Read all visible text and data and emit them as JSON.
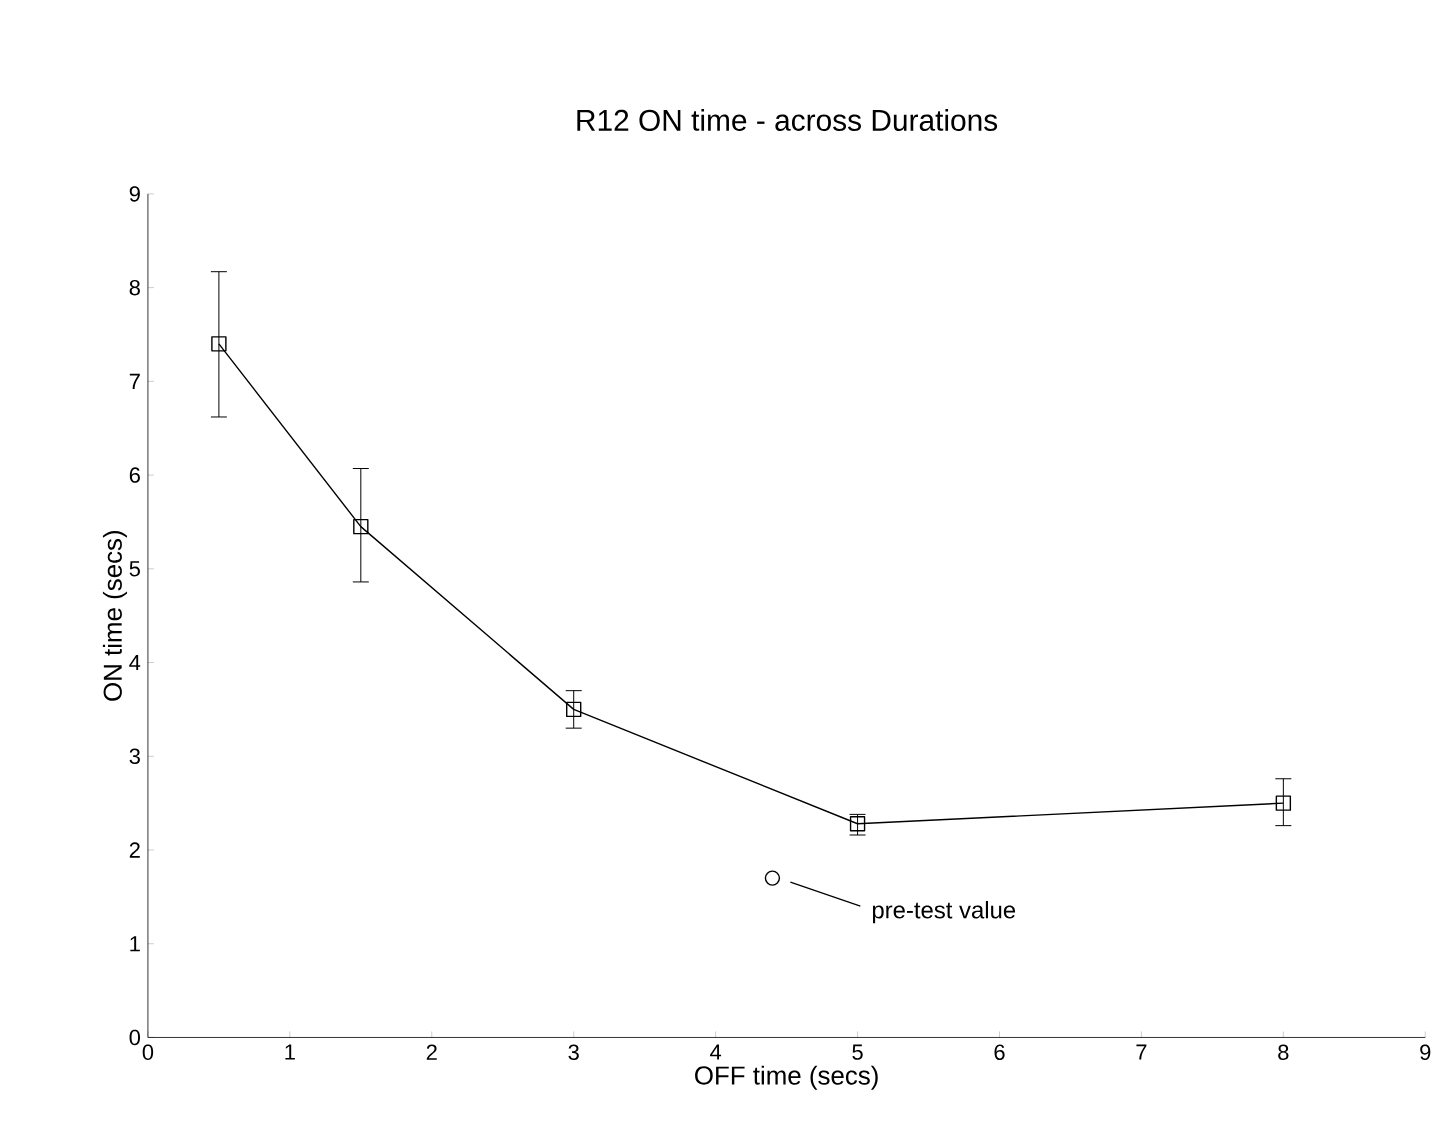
{
  "chart_data": {
    "type": "line",
    "title": "R12 ON time - across Durations",
    "xlabel": "OFF time (secs)",
    "ylabel": "ON time (secs)",
    "xlim": [
      0,
      9
    ],
    "ylim": [
      0,
      9
    ],
    "xticks": [
      0,
      1,
      2,
      3,
      4,
      5,
      6,
      7,
      8,
      9
    ],
    "yticks": [
      0,
      1,
      2,
      3,
      4,
      5,
      6,
      7,
      8,
      9
    ],
    "series": [
      {
        "color": "#000000",
        "marker": "square",
        "line_style": "solid",
        "x": [
          0.5,
          1.5,
          3,
          5,
          8
        ],
        "values": [
          7.4,
          5.45,
          3.5,
          2.28,
          2.5
        ],
        "errors": [
          [
            6.62,
            8.17
          ],
          [
            4.86,
            6.07
          ],
          [
            3.3,
            3.7
          ],
          [
            2.16,
            2.38
          ],
          [
            2.26,
            2.76
          ]
        ]
      },
      {
        "type": "scatter",
        "color": "#000000",
        "marker": "circle",
        "x": [
          4.4
        ],
        "values": [
          1.7
        ]
      }
    ],
    "annotations": [
      "pre-test value"
    ]
  }
}
